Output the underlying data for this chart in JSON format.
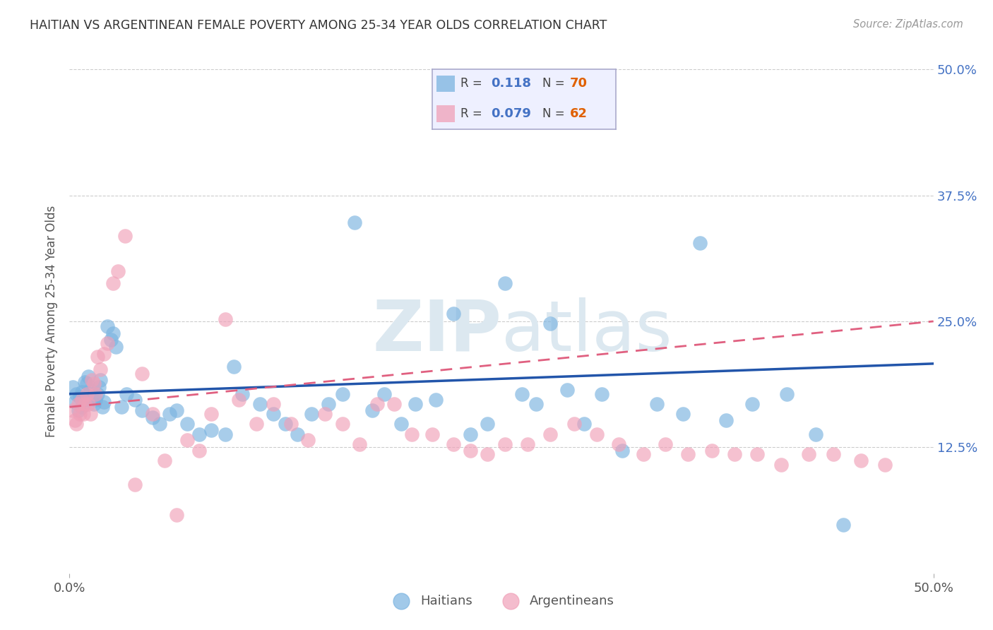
{
  "title": "HAITIAN VS ARGENTINEAN FEMALE POVERTY AMONG 25-34 YEAR OLDS CORRELATION CHART",
  "source": "Source: ZipAtlas.com",
  "ylabel": "Female Poverty Among 25-34 Year Olds",
  "xlim": [
    0.0,
    0.5
  ],
  "ylim": [
    0.0,
    0.5
  ],
  "haitians_R": 0.118,
  "haitians_N": 70,
  "argentineans_R": 0.079,
  "argentineans_N": 62,
  "haitian_color": "#7ab3e0",
  "argentinean_color": "#f0a0b8",
  "haitian_line_color": "#2255aa",
  "argentinean_line_color": "#e06080",
  "background_color": "#ffffff",
  "watermark_color": "#dce8f0",
  "legend_bg": "#eef0ff",
  "legend_border": "#aaaacc",
  "haitians_x": [
    0.002,
    0.003,
    0.004,
    0.005,
    0.006,
    0.007,
    0.007,
    0.008,
    0.009,
    0.01,
    0.011,
    0.012,
    0.013,
    0.014,
    0.015,
    0.016,
    0.017,
    0.018,
    0.019,
    0.02,
    0.022,
    0.024,
    0.025,
    0.027,
    0.03,
    0.033,
    0.038,
    0.042,
    0.048,
    0.052,
    0.058,
    0.062,
    0.068,
    0.075,
    0.082,
    0.09,
    0.095,
    0.1,
    0.11,
    0.118,
    0.125,
    0.132,
    0.14,
    0.15,
    0.158,
    0.165,
    0.175,
    0.182,
    0.192,
    0.2,
    0.212,
    0.222,
    0.232,
    0.242,
    0.252,
    0.262,
    0.27,
    0.278,
    0.288,
    0.298,
    0.308,
    0.32,
    0.34,
    0.355,
    0.365,
    0.38,
    0.395,
    0.415,
    0.432,
    0.448
  ],
  "haitians_y": [
    0.185,
    0.17,
    0.178,
    0.162,
    0.175,
    0.165,
    0.18,
    0.172,
    0.19,
    0.188,
    0.195,
    0.182,
    0.175,
    0.168,
    0.172,
    0.178,
    0.185,
    0.192,
    0.165,
    0.17,
    0.245,
    0.232,
    0.238,
    0.225,
    0.165,
    0.178,
    0.172,
    0.162,
    0.155,
    0.148,
    0.158,
    0.162,
    0.148,
    0.138,
    0.142,
    0.138,
    0.205,
    0.178,
    0.168,
    0.158,
    0.148,
    0.138,
    0.158,
    0.168,
    0.178,
    0.348,
    0.162,
    0.178,
    0.148,
    0.168,
    0.172,
    0.258,
    0.138,
    0.148,
    0.288,
    0.178,
    0.168,
    0.248,
    0.182,
    0.148,
    0.178,
    0.122,
    0.168,
    0.158,
    0.328,
    0.152,
    0.168,
    0.178,
    0.138,
    0.048
  ],
  "argentineans_x": [
    0.002,
    0.003,
    0.004,
    0.005,
    0.006,
    0.007,
    0.008,
    0.009,
    0.01,
    0.011,
    0.012,
    0.013,
    0.014,
    0.015,
    0.016,
    0.018,
    0.02,
    0.022,
    0.025,
    0.028,
    0.032,
    0.038,
    0.042,
    0.048,
    0.055,
    0.062,
    0.068,
    0.075,
    0.082,
    0.09,
    0.098,
    0.108,
    0.118,
    0.128,
    0.138,
    0.148,
    0.158,
    0.168,
    0.178,
    0.188,
    0.198,
    0.21,
    0.222,
    0.232,
    0.242,
    0.252,
    0.265,
    0.278,
    0.292,
    0.305,
    0.318,
    0.332,
    0.345,
    0.358,
    0.372,
    0.385,
    0.398,
    0.412,
    0.428,
    0.442,
    0.458,
    0.472
  ],
  "argentineans_y": [
    0.162,
    0.152,
    0.148,
    0.168,
    0.158,
    0.172,
    0.158,
    0.168,
    0.178,
    0.168,
    0.158,
    0.192,
    0.188,
    0.178,
    0.215,
    0.202,
    0.218,
    0.228,
    0.288,
    0.3,
    0.335,
    0.088,
    0.198,
    0.158,
    0.112,
    0.058,
    0.132,
    0.122,
    0.158,
    0.252,
    0.172,
    0.148,
    0.168,
    0.148,
    0.132,
    0.158,
    0.148,
    0.128,
    0.168,
    0.168,
    0.138,
    0.138,
    0.128,
    0.122,
    0.118,
    0.128,
    0.128,
    0.138,
    0.148,
    0.138,
    0.128,
    0.118,
    0.128,
    0.118,
    0.122,
    0.118,
    0.118,
    0.108,
    0.118,
    0.118,
    0.112,
    0.108
  ]
}
